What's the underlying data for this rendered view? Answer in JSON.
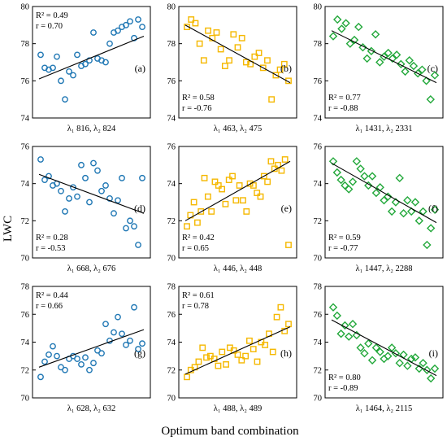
{
  "figure": {
    "ylabel": "LWC",
    "xlabel": "Optimum band combination"
  },
  "colors": {
    "blue": "#1f77b4",
    "orange": "#f5b800",
    "green": "#22a83a",
    "line": "#000000"
  },
  "chart_data": [
    {
      "type": "scatter",
      "label": "(a)",
      "marker": "circle",
      "color": "blue",
      "xcaption": "λ₁ 816, λ₂ 824",
      "r2_text": "R² =  0.49",
      "r_text": "r  =  0.70",
      "stats_position": "top-left",
      "ylim": [
        74,
        80
      ],
      "yticks": [
        74,
        76,
        78,
        80
      ],
      "y": [
        77.4,
        76.7,
        76.6,
        76.7,
        77.3,
        76.0,
        75.0,
        76.5,
        76.3,
        77.4,
        76.8,
        76.9,
        77.1,
        78.6,
        77.2,
        77.1,
        77.0,
        78.0,
        78.6,
        78.7,
        78.9,
        79.0,
        79.2,
        78.3,
        79.3,
        78.9
      ],
      "trend": [
        76.1,
        78.4
      ]
    },
    {
      "type": "scatter",
      "label": "(b)",
      "marker": "square",
      "color": "orange",
      "xcaption": "λ₁ 463, λ₂ 475",
      "r2_text": "R² =  0.58",
      "r_text": "r  = -0.76",
      "stats_position": "bottom-left",
      "ylim": [
        74,
        80
      ],
      "yticks": [
        74,
        76,
        78,
        80
      ],
      "y": [
        78.9,
        79.3,
        79.1,
        78.0,
        77.1,
        78.7,
        78.3,
        78.6,
        77.7,
        76.8,
        77.1,
        78.5,
        77.8,
        78.3,
        77.0,
        76.9,
        77.3,
        77.5,
        76.7,
        77.1,
        75.0,
        76.3,
        76.6,
        76.9,
        76.0
      ],
      "trend": [
        79.0,
        75.9
      ]
    },
    {
      "type": "scatter",
      "label": "(c)",
      "marker": "diamond",
      "color": "green",
      "xcaption": "λ₁ 1431, λ₂ 2331",
      "r2_text": "R² =  0.77",
      "r_text": "r  = -0.88",
      "stats_position": "bottom-left",
      "ylim": [
        74,
        80
      ],
      "yticks": [
        74,
        76,
        78,
        80
      ],
      "y": [
        78.4,
        79.3,
        78.8,
        79.1,
        78.0,
        78.2,
        78.9,
        77.8,
        77.2,
        77.6,
        78.5,
        77.0,
        77.3,
        77.5,
        77.2,
        77.4,
        76.9,
        76.5,
        77.1,
        76.8,
        76.4,
        76.6,
        76.0,
        75.0,
        76.3
      ],
      "trend": [
        78.7,
        75.9
      ]
    },
    {
      "type": "scatter",
      "label": "(d)",
      "marker": "circle",
      "color": "blue",
      "xcaption": "λ₁ 668, λ₂ 676",
      "r2_text": "R² =  0.28",
      "r_text": "r  = -0.53",
      "stats_position": "bottom-left",
      "ylim": [
        70,
        76
      ],
      "yticks": [
        70,
        72,
        74,
        76
      ],
      "y": [
        75.3,
        74.2,
        74.4,
        73.9,
        74.0,
        73.6,
        72.5,
        73.2,
        73.8,
        73.3,
        75.0,
        74.3,
        73.0,
        75.1,
        74.7,
        73.6,
        73.9,
        73.2,
        72.4,
        73.1,
        74.3,
        71.6,
        72.0,
        71.7,
        70.7,
        74.3
      ],
      "trend": [
        74.5,
        72.4
      ]
    },
    {
      "type": "scatter",
      "label": "(e)",
      "marker": "square",
      "color": "orange",
      "xcaption": "λ₁ 446, λ₂ 448",
      "r2_text": "R² =  0.42",
      "r_text": "r  =  0.65",
      "stats_position": "bottom-left",
      "ylim": [
        70,
        76
      ],
      "yticks": [
        70,
        72,
        74,
        76
      ],
      "y": [
        71.7,
        72.3,
        73.0,
        71.9,
        72.5,
        74.3,
        73.3,
        72.5,
        74.1,
        73.9,
        73.7,
        72.9,
        74.2,
        74.4,
        73.1,
        73.9,
        73.1,
        72.5,
        74.0,
        73.9,
        73.5,
        73.3,
        74.4,
        74.1,
        75.2,
        74.8,
        75.0,
        74.7,
        75.3,
        70.7
      ],
      "trend": [
        72.0,
        75.2
      ]
    },
    {
      "type": "scatter",
      "label": "(f)",
      "marker": "diamond",
      "color": "green",
      "xcaption": "λ₁ 1447, λ₂ 2288",
      "r2_text": "R² =  0.59",
      "r_text": "r  = -0.77",
      "stats_position": "bottom-left",
      "ylim": [
        70,
        76
      ],
      "yticks": [
        70,
        72,
        74,
        76
      ],
      "y": [
        75.2,
        74.6,
        74.2,
        73.9,
        73.7,
        74.1,
        75.2,
        74.8,
        74.4,
        73.9,
        74.4,
        73.5,
        73.8,
        73.1,
        73.3,
        72.5,
        73.0,
        74.3,
        72.4,
        73.1,
        72.5,
        73.0,
        72.0,
        72.5,
        70.7,
        71.6,
        72.6
      ],
      "trend": [
        75.1,
        71.9
      ]
    },
    {
      "type": "scatter",
      "label": "(g)",
      "marker": "circle",
      "color": "blue",
      "xcaption": "λ₁ 628, λ₂ 632",
      "r2_text": "R² =  0.44",
      "r_text": "r  =  0.66",
      "stats_position": "top-left",
      "ylim": [
        70,
        78
      ],
      "yticks": [
        70,
        72,
        74,
        76,
        78
      ],
      "y": [
        71.5,
        72.6,
        73.1,
        73.7,
        73.0,
        72.2,
        72.0,
        72.8,
        73.0,
        72.8,
        72.4,
        72.9,
        72.0,
        72.5,
        73.4,
        73.2,
        75.3,
        74.1,
        74.7,
        75.8,
        74.6,
        73.8,
        74.1,
        76.5,
        73.5,
        73.9
      ],
      "trend": [
        72.2,
        74.9
      ]
    },
    {
      "type": "scatter",
      "label": "(h)",
      "marker": "square",
      "color": "orange",
      "xcaption": "λ₁ 488, λ₂ 489",
      "r2_text": "R² =  0.61",
      "r_text": "r  =  0.78",
      "stats_position": "top-left",
      "ylim": [
        70,
        78
      ],
      "yticks": [
        70,
        72,
        74,
        76,
        78
      ],
      "y": [
        71.5,
        72.0,
        72.2,
        72.6,
        73.6,
        72.9,
        73.0,
        72.8,
        72.3,
        73.3,
        72.4,
        73.6,
        73.4,
        73.1,
        72.7,
        73.0,
        74.1,
        73.5,
        72.6,
        74.0,
        73.8,
        74.6,
        73.3,
        75.8,
        76.5,
        74.8,
        75.3
      ],
      "trend": [
        71.7,
        75.1
      ]
    },
    {
      "type": "scatter",
      "label": "(i)",
      "marker": "diamond",
      "color": "green",
      "xcaption": "λ₁ 1464, λ₂ 2115",
      "r2_text": "R² =  0.80",
      "r_text": "r  = -0.89",
      "stats_position": "bottom-left",
      "ylim": [
        70,
        78
      ],
      "yticks": [
        70,
        72,
        74,
        76,
        78
      ],
      "y": [
        76.5,
        75.9,
        74.6,
        75.2,
        74.4,
        75.3,
        74.5,
        73.6,
        73.2,
        73.9,
        72.7,
        73.6,
        73.3,
        72.8,
        73.0,
        73.6,
        73.2,
        72.5,
        73.1,
        72.3,
        72.8,
        72.9,
        72.1,
        72.5,
        72.0,
        71.4,
        72.1
      ],
      "trend": [
        75.6,
        71.6
      ]
    }
  ]
}
